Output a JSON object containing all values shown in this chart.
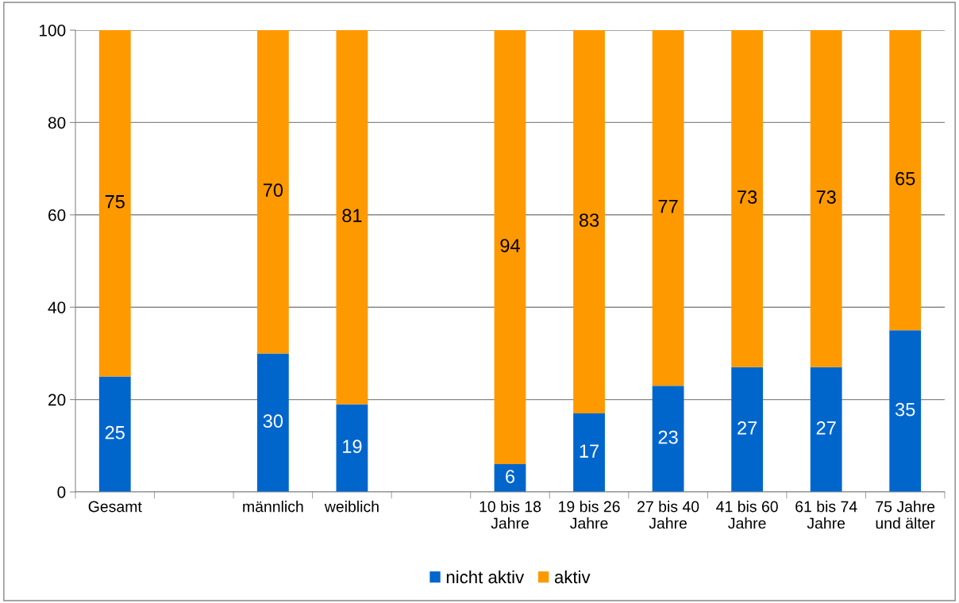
{
  "chart_data": {
    "type": "bar",
    "stacked": true,
    "categories": [
      "Gesamt",
      null,
      "männlich",
      "weiblich",
      null,
      "10 bis 18\nJahre",
      "19 bis 26\nJahre",
      "27 bis 40\nJahre",
      "41 bis 60\nJahre",
      "61 bis 74\nJahre",
      "75 Jahre\nund älter"
    ],
    "series": [
      {
        "name": "nicht aktiv",
        "color": "#0066cc",
        "values": [
          25,
          null,
          30,
          19,
          null,
          6,
          17,
          23,
          27,
          27,
          35
        ]
      },
      {
        "name": "aktiv",
        "color": "#ff9900",
        "values": [
          75,
          null,
          70,
          81,
          null,
          94,
          83,
          77,
          73,
          73,
          65
        ]
      }
    ],
    "ylim": [
      0,
      100
    ],
    "yticks": [
      0,
      20,
      40,
      60,
      80,
      100
    ],
    "grid": "y",
    "legend": "bottom",
    "data_labels": true
  }
}
